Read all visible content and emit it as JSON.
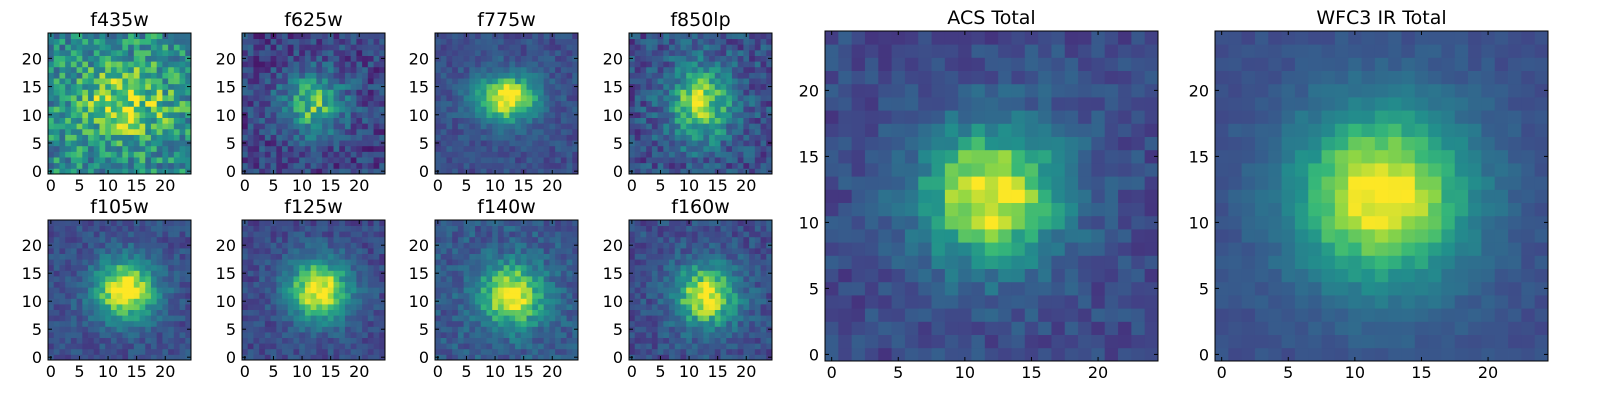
{
  "colormap": "viridis",
  "chart_data": [
    {
      "type": "heatmap",
      "title": "f435w",
      "colormap": "viridis",
      "grid": false,
      "xlim": [
        -0.5,
        24.5
      ],
      "ylim": [
        -0.5,
        24.5
      ],
      "xticks": [
        "0",
        "5",
        "10",
        "15",
        "20"
      ],
      "yticks": [
        "0",
        "5",
        "10",
        "15",
        "20"
      ]
    },
    {
      "type": "heatmap",
      "title": "f625w",
      "colormap": "viridis",
      "grid": false,
      "xlim": [
        -0.5,
        24.5
      ],
      "ylim": [
        -0.5,
        24.5
      ],
      "xticks": [
        "0",
        "5",
        "10",
        "15",
        "20"
      ],
      "yticks": [
        "0",
        "5",
        "10",
        "15",
        "20"
      ]
    },
    {
      "type": "heatmap",
      "title": "f775w",
      "colormap": "viridis",
      "grid": false,
      "xlim": [
        -0.5,
        24.5
      ],
      "ylim": [
        -0.5,
        24.5
      ],
      "xticks": [
        "0",
        "5",
        "10",
        "15",
        "20"
      ],
      "yticks": [
        "0",
        "5",
        "10",
        "15",
        "20"
      ]
    },
    {
      "type": "heatmap",
      "title": "f850lp",
      "colormap": "viridis",
      "grid": false,
      "xlim": [
        -0.5,
        24.5
      ],
      "ylim": [
        -0.5,
        24.5
      ],
      "xticks": [
        "0",
        "5",
        "10",
        "15",
        "20"
      ],
      "yticks": [
        "0",
        "5",
        "10",
        "15",
        "20"
      ]
    },
    {
      "type": "heatmap",
      "title": "f105w",
      "colormap": "viridis",
      "grid": false,
      "xlim": [
        -0.5,
        24.5
      ],
      "ylim": [
        -0.5,
        24.5
      ],
      "xticks": [
        "0",
        "5",
        "10",
        "15",
        "20"
      ],
      "yticks": [
        "0",
        "5",
        "10",
        "15",
        "20"
      ]
    },
    {
      "type": "heatmap",
      "title": "f125w",
      "colormap": "viridis",
      "grid": false,
      "xlim": [
        -0.5,
        24.5
      ],
      "ylim": [
        -0.5,
        24.5
      ],
      "xticks": [
        "0",
        "5",
        "10",
        "15",
        "20"
      ],
      "yticks": [
        "0",
        "5",
        "10",
        "15",
        "20"
      ]
    },
    {
      "type": "heatmap",
      "title": "f140w",
      "colormap": "viridis",
      "grid": false,
      "xlim": [
        -0.5,
        24.5
      ],
      "ylim": [
        -0.5,
        24.5
      ],
      "xticks": [
        "0",
        "5",
        "10",
        "15",
        "20"
      ],
      "yticks": [
        "0",
        "5",
        "10",
        "15",
        "20"
      ]
    },
    {
      "type": "heatmap",
      "title": "f160w",
      "colormap": "viridis",
      "grid": false,
      "xlim": [
        -0.5,
        24.5
      ],
      "ylim": [
        -0.5,
        24.5
      ],
      "xticks": [
        "0",
        "5",
        "10",
        "15",
        "20"
      ],
      "yticks": [
        "0",
        "5",
        "10",
        "15",
        "20"
      ]
    },
    {
      "type": "heatmap",
      "title": "ACS Total",
      "colormap": "viridis",
      "grid": false,
      "xlim": [
        -0.5,
        24.5
      ],
      "ylim": [
        -0.5,
        24.5
      ],
      "xticks": [
        "0",
        "5",
        "10",
        "15",
        "20"
      ],
      "yticks": [
        "0",
        "5",
        "10",
        "15",
        "20"
      ]
    },
    {
      "type": "heatmap",
      "title": "WFC3 IR Total",
      "colormap": "viridis",
      "grid": false,
      "xlim": [
        -0.5,
        24.5
      ],
      "ylim": [
        -0.5,
        24.5
      ],
      "xticks": [
        "0",
        "5",
        "10",
        "15",
        "20"
      ],
      "yticks": [
        "0",
        "5",
        "10",
        "15",
        "20"
      ]
    }
  ]
}
